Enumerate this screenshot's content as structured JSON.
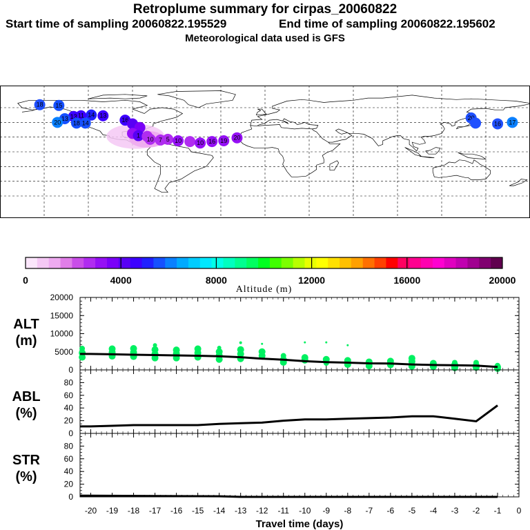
{
  "header": {
    "title": "Retroplume summary for cirpas_20060822",
    "start": "Start time of sampling 20060822.195529",
    "end": "End time of sampling 20060822.195602",
    "met": "Meteorological data used is GFS"
  },
  "colorbar": {
    "ticks": [
      "0",
      "4000",
      "8000",
      "12000",
      "16000",
      "20000"
    ],
    "label": "Altitude (m)",
    "colors": [
      "#fbe6fb",
      "#f5c8f5",
      "#eeaaf0",
      "#e07ee8",
      "#c94ee8",
      "#b02cf0",
      "#9510f5",
      "#7a00f8",
      "#5800f5",
      "#3c00ff",
      "#2020ff",
      "#1650ff",
      "#0a80ff",
      "#00aaff",
      "#00ccff",
      "#00e8ff",
      "#00ffe8",
      "#00ffc0",
      "#00ff90",
      "#00ff60",
      "#00ff20",
      "#40ff00",
      "#7cff00",
      "#b8ff00",
      "#e8ff00",
      "#ffff00",
      "#ffe000",
      "#ffc000",
      "#ffa000",
      "#ff7000",
      "#ff4000",
      "#ff0000",
      "#ff0060",
      "#ff0090",
      "#ff00b0",
      "#ff00d0",
      "#e000c0",
      "#c000b0",
      "#a00090",
      "#800070",
      "#60004e"
    ]
  },
  "chart_data": [
    {
      "type": "scatter+line",
      "panel": "ALT",
      "title": "",
      "ylabel": "ALT\n(m)",
      "ylabel_lines": [
        "ALT",
        "(m)"
      ],
      "xlim": [
        -20.5,
        0
      ],
      "ylim": [
        0,
        20000
      ],
      "yticks": [
        "20000",
        "15000",
        "10000",
        "5000",
        "0"
      ],
      "median_x": [
        -20.5,
        -20,
        -19,
        -18,
        -17,
        -16,
        -15,
        -14,
        -13,
        -12,
        -11,
        -10,
        -9,
        -8,
        -7,
        -6,
        -5,
        -4,
        -3,
        -2,
        -1
      ],
      "median_y": [
        4400,
        4400,
        4300,
        4200,
        4100,
        4000,
        3900,
        3750,
        3500,
        3100,
        2800,
        2400,
        2150,
        2000,
        1800,
        1750,
        1500,
        1350,
        1300,
        1200,
        800
      ],
      "scatter_x": [
        -20.4,
        -20.4,
        -20.4,
        -19,
        -19,
        -19,
        -18,
        -18,
        -18,
        -17,
        -17,
        -17,
        -17,
        -16,
        -16,
        -16,
        -15,
        -15,
        -15,
        -14,
        -14,
        -14,
        -14,
        -13,
        -13,
        -13,
        -13,
        -12,
        -12,
        -12,
        -11,
        -11,
        -11,
        -10,
        -10,
        -10,
        -9,
        -9,
        -9,
        -8,
        -8,
        -8,
        -7,
        -7,
        -6,
        -6,
        -6,
        -5,
        -5,
        -5,
        -4,
        -4,
        -3,
        -3,
        -3,
        -3,
        -2,
        -2,
        -2,
        -1,
        -1,
        -1
      ],
      "scatter_y": [
        5900,
        4700,
        3500,
        5800,
        4800,
        3800,
        5900,
        4800,
        3700,
        6800,
        5600,
        4400,
        3300,
        5500,
        4500,
        3300,
        5800,
        4700,
        3500,
        6100,
        5000,
        4000,
        2900,
        7500,
        5600,
        4400,
        3100,
        7200,
        5000,
        3900,
        3900,
        2800,
        2100,
        3400,
        2700,
        7600,
        2900,
        7600,
        1900,
        6800,
        2600,
        1500,
        2200,
        1100,
        2400,
        1400,
        1600,
        3200,
        2300,
        1000,
        1800,
        900,
        2000,
        1400,
        900,
        600,
        2000,
        1200,
        700,
        1200,
        800,
        400
      ],
      "scatter_size": [
        4,
        5,
        5,
        5,
        5,
        5,
        5,
        5,
        5,
        3,
        5,
        5,
        5,
        5,
        5,
        5,
        5,
        5,
        5,
        3,
        5,
        5,
        5,
        2,
        5,
        5,
        5,
        1.5,
        5,
        5,
        4,
        5,
        5,
        5,
        5,
        1.5,
        5,
        1.5,
        4,
        1.5,
        5,
        5,
        5,
        5,
        5,
        5,
        5,
        5,
        5,
        5,
        5,
        5,
        4,
        5,
        5,
        5,
        4,
        5,
        5,
        4,
        5,
        5
      ]
    },
    {
      "type": "line",
      "panel": "ABL",
      "ylabel_lines": [
        "ABL",
        "(%)"
      ],
      "xlim": [
        -20.5,
        0
      ],
      "ylim": [
        0,
        100
      ],
      "yticks": [
        "80",
        "60",
        "40",
        "20",
        "0"
      ],
      "x": [
        -20.5,
        -20,
        -19,
        -18,
        -17,
        -16,
        -15,
        -14,
        -13,
        -12,
        -11,
        -10,
        -9,
        -8,
        -7,
        -6,
        -5,
        -4,
        -3,
        -2,
        -1
      ],
      "y": [
        11,
        11,
        12,
        13,
        13,
        13,
        13,
        15,
        16,
        17,
        20,
        22,
        22,
        23,
        24,
        25,
        27,
        27,
        23,
        19,
        44
      ]
    },
    {
      "type": "line",
      "panel": "STR",
      "ylabel_lines": [
        "STR",
        "(%)"
      ],
      "xlim": [
        -20.5,
        0
      ],
      "ylim": [
        0,
        100
      ],
      "yticks": [
        "80",
        "60",
        "40",
        "20",
        "0"
      ],
      "x": [
        -20.5,
        -14,
        -13,
        -1
      ],
      "y": [
        2,
        1,
        0,
        0
      ],
      "xticks": [
        "-20",
        "-19",
        "-18",
        "-17",
        "-16",
        "-15",
        "-14",
        "-13",
        "-12",
        "-11",
        "-10",
        "-9",
        "-8",
        "-7",
        "-6",
        "-5",
        "-4",
        "-3",
        "-2",
        "-1",
        "0"
      ],
      "xlabel": "Travel time (days)"
    }
  ],
  "map": {
    "markers": [
      {
        "lon": -153,
        "lat": 64,
        "label": "18",
        "color": "#2050ff"
      },
      {
        "lon": -140,
        "lat": 63,
        "label": "15",
        "color": "#1650ff"
      },
      {
        "lon": -118,
        "lat": 50,
        "label": "14",
        "color": "#2020ff"
      },
      {
        "lon": -125,
        "lat": 49,
        "label": "11",
        "color": "#3c00ff"
      },
      {
        "lon": -130,
        "lat": 48,
        "label": "13",
        "color": "#3c00ff"
      },
      {
        "lon": -110,
        "lat": 49,
        "label": "13",
        "color": "#3c00ff"
      },
      {
        "lon": -136,
        "lat": 45,
        "label": "13",
        "color": "#1650ff"
      },
      {
        "lon": -141,
        "lat": 40,
        "label": "20",
        "color": "#0a80ff"
      },
      {
        "lon": -128,
        "lat": 39,
        "label": "18",
        "color": "#1650ff"
      },
      {
        "lon": -122,
        "lat": 39,
        "label": "14",
        "color": "#1650ff"
      },
      {
        "lon": -95,
        "lat": 43,
        "label": "16",
        "color": "#3c00ff"
      },
      {
        "lon": -90,
        "lat": 38,
        "label": "",
        "color": "#5800f5"
      },
      {
        "lon": -85,
        "lat": 33,
        "label": "",
        "color": "#7a00f8"
      },
      {
        "lon": -90,
        "lat": 25,
        "label": "",
        "color": "#9510f5"
      },
      {
        "lon": -86,
        "lat": 22,
        "label": "1",
        "color": "#5800f5"
      },
      {
        "lon": -80,
        "lat": 21,
        "label": "",
        "color": "#b02cf0"
      },
      {
        "lon": -78,
        "lat": 17,
        "label": "10",
        "color": "#b02cf0"
      },
      {
        "lon": -71,
        "lat": 16,
        "label": "7",
        "color": "#b02cf0"
      },
      {
        "lon": -66,
        "lat": 17,
        "label": "5",
        "color": "#b02cf0"
      },
      {
        "lon": -59,
        "lat": 15,
        "label": "10",
        "color": "#9510f5"
      },
      {
        "lon": -51,
        "lat": 14,
        "label": "",
        "color": "#b02cf0"
      },
      {
        "lon": -44,
        "lat": 12,
        "label": "10",
        "color": "#9510f5"
      },
      {
        "lon": -36,
        "lat": 14,
        "label": "16",
        "color": "#9510f5"
      },
      {
        "lon": -28,
        "lat": 15,
        "label": "19",
        "color": "#9510f5"
      },
      {
        "lon": -19,
        "lat": 19,
        "label": "20",
        "color": "#9510f5"
      },
      {
        "lon": 140,
        "lat": 46,
        "label": "20",
        "color": "#2050ff"
      },
      {
        "lon": 158,
        "lat": 38,
        "label": "16",
        "color": "#2050ff"
      },
      {
        "lon": 168,
        "lat": 40,
        "label": "17",
        "color": "#0a80ff"
      },
      {
        "lon": 143,
        "lat": 39,
        "label": "",
        "color": "#2050ff"
      }
    ]
  }
}
